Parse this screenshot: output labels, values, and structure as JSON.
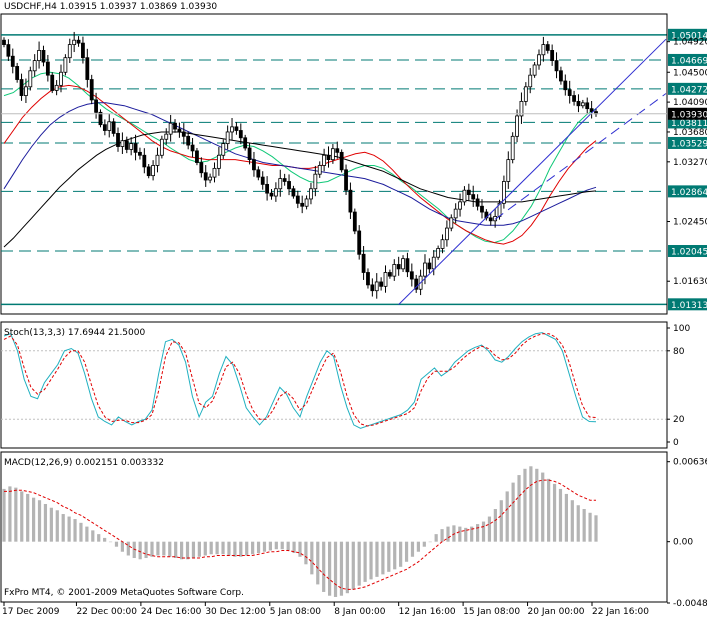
{
  "header": {
    "symbol": "USDCHF,H4",
    "ohlc": "1.03915 1.03937 1.03869 1.03930"
  },
  "footer": {
    "copyright": "FxPro MT4, © 2001-2009 MetaQuotes Software Corp."
  },
  "colors": {
    "background": "#ffffff",
    "axis": "#000000",
    "level_line": "#007a73",
    "level_label_bg": "#007a73",
    "ma_fast": "#10c878",
    "ma_mid": "#e00000",
    "ma_slow": "#1c1c9c",
    "ma_long": "#000000",
    "trendline": "#3030d0",
    "stoch_main": "#20b0c0",
    "stoch_signal": "#e00000",
    "macd_hist": "#b4b4b4",
    "macd_signal": "#e00000",
    "current_price_label_bg": "#000000"
  },
  "chart_data": [
    {
      "type": "candlestick",
      "title": "USDCHF,H4",
      "ylim": [
        1.0118,
        1.053
      ],
      "y_ticks": [
        "1.04920",
        "1.04500",
        "1.04090",
        "1.03680",
        "1.03270",
        "1.02450",
        "1.01630"
      ],
      "x_ticks": [
        "17 Dec 2009",
        "22 Dec 00:00",
        "24 Dec 16:00",
        "30 Dec 12:00",
        "5 Jan 08:00",
        "8 Jan 00:00",
        "12 Jan 16:00",
        "15 Jan 08:00",
        "20 Jan 00:00",
        "22 Jan 16:00"
      ],
      "current_price": "1.03930",
      "levels": [
        {
          "label": "1.05014",
          "value": 1.05014,
          "style": "solid"
        },
        {
          "label": "1.04669",
          "value": 1.04669,
          "style": "dashed"
        },
        {
          "label": "1.04272",
          "value": 1.04272,
          "style": "dashed"
        },
        {
          "label": "1.03811",
          "value": 1.03811,
          "style": "dashed"
        },
        {
          "label": "1.03529",
          "value": 1.03529,
          "style": "dashed"
        },
        {
          "label": "1.02864",
          "value": 1.02864,
          "style": "dashed"
        },
        {
          "label": "1.02045",
          "value": 1.02045,
          "style": "dashed"
        },
        {
          "label": "1.01313",
          "value": 1.01313,
          "style": "solid"
        }
      ],
      "closes": [
        1.0488,
        1.0472,
        1.0458,
        1.044,
        1.0418,
        1.043,
        1.0452,
        1.0466,
        1.048,
        1.0464,
        1.0446,
        1.0425,
        1.0432,
        1.045,
        1.047,
        1.0488,
        1.0494,
        1.049,
        1.047,
        1.044,
        1.0412,
        1.0395,
        1.0378,
        1.037,
        1.0382,
        1.0366,
        1.0348,
        1.0356,
        1.0344,
        1.0352,
        1.034,
        1.0336,
        1.032,
        1.0308,
        1.0322,
        1.0336,
        1.0358,
        1.0365,
        1.038,
        1.0372,
        1.0368,
        1.0362,
        1.035,
        1.0342,
        1.0326,
        1.0312,
        1.0302,
        1.0306,
        1.0318,
        1.0336,
        1.0352,
        1.0368,
        1.0375,
        1.037,
        1.036,
        1.0346,
        1.033,
        1.0316,
        1.0306,
        1.0296,
        1.0284,
        1.028,
        1.029,
        1.0304,
        1.03,
        1.029,
        1.028,
        1.027,
        1.0266,
        1.0276,
        1.029,
        1.031,
        1.0322,
        1.0336,
        1.033,
        1.0345,
        1.034,
        1.0316,
        1.0288,
        1.0258,
        1.0232,
        1.02,
        1.0175,
        1.0158,
        1.015,
        1.0162,
        1.0156,
        1.0175,
        1.017,
        1.0186,
        1.018,
        1.0194,
        1.0176,
        1.0166,
        1.0152,
        1.017,
        1.0188,
        1.018,
        1.0196,
        1.0208,
        1.022,
        1.0236,
        1.025,
        1.0262,
        1.0272,
        1.0288,
        1.0282,
        1.0276,
        1.0266,
        1.0258,
        1.025,
        1.0246,
        1.0252,
        1.027,
        1.03,
        1.033,
        1.0362,
        1.039,
        1.041,
        1.043,
        1.0446,
        1.046,
        1.0474,
        1.0488,
        1.048,
        1.0466,
        1.0452,
        1.0438,
        1.0426,
        1.0418,
        1.041,
        1.0404,
        1.0408,
        1.04,
        1.0396,
        1.0393
      ],
      "series": [
        {
          "name": "MA fast",
          "color": "#10c878",
          "values": [
            1.0418,
            1.0422,
            1.0432,
            1.0442,
            1.0448,
            1.045,
            1.0448,
            1.0442,
            1.0432,
            1.042,
            1.041,
            1.04,
            1.0392,
            1.0385,
            1.0378,
            1.037,
            1.0362,
            1.0355,
            1.0346,
            1.0338,
            1.033,
            1.0326,
            1.0328,
            1.0334,
            1.034,
            1.0346,
            1.035,
            1.0348,
            1.0342,
            1.0334,
            1.0324,
            1.0314,
            1.0306,
            1.03,
            1.0298,
            1.03,
            1.0306,
            1.0312,
            1.0318,
            1.0322,
            1.0322,
            1.0318,
            1.031,
            1.03,
            1.0292,
            1.0282,
            1.0272,
            1.0262,
            1.025,
            1.024,
            1.0232,
            1.0224,
            1.0218,
            1.0216,
            1.022,
            1.0232,
            1.0248,
            1.0266,
            1.029,
            1.0318,
            1.034,
            1.0362,
            1.038,
            1.0392,
            1.04
          ]
        },
        {
          "name": "MA mid",
          "color": "#e00000",
          "values": [
            1.0352,
            1.037,
            1.0388,
            1.0402,
            1.0414,
            1.0424,
            1.043,
            1.0432,
            1.043,
            1.0424,
            1.0416,
            1.0406,
            1.0396,
            1.0386,
            1.0376,
            1.0366,
            1.0356,
            1.0348,
            1.0342,
            1.0338,
            1.0334,
            1.0332,
            1.033,
            1.033,
            1.033,
            1.033,
            1.0328,
            1.0326,
            1.0324,
            1.0322,
            1.0322,
            1.032,
            1.0318,
            1.0318,
            1.032,
            1.0326,
            1.033,
            1.0334,
            1.0338,
            1.034,
            1.0336,
            1.0328,
            1.0316,
            1.0302,
            1.029,
            1.0278,
            1.0268,
            1.0258,
            1.0248,
            1.024,
            1.0232,
            1.0226,
            1.022,
            1.0216,
            1.0214,
            1.0218,
            1.0226,
            1.024,
            1.0258,
            1.028,
            1.03,
            1.0318,
            1.0332,
            1.0346,
            1.0356
          ]
        },
        {
          "name": "MA slow",
          "color": "#1c1c9c",
          "values": [
            1.029,
            1.031,
            1.033,
            1.0348,
            1.0364,
            1.0378,
            1.0388,
            1.0396,
            1.0402,
            1.0406,
            1.0408,
            1.0408,
            1.0406,
            1.0404,
            1.04,
            1.0396,
            1.0392,
            1.0386,
            1.038,
            1.0374,
            1.0368,
            1.0362,
            1.0356,
            1.035,
            1.0344,
            1.0338,
            1.0334,
            1.033,
            1.0326,
            1.0324,
            1.0322,
            1.032,
            1.0318,
            1.0316,
            1.0314,
            1.0312,
            1.031,
            1.0308,
            1.0306,
            1.0304,
            1.03,
            1.0296,
            1.029,
            1.0284,
            1.0278,
            1.027,
            1.0262,
            1.0256,
            1.025,
            1.0246,
            1.0244,
            1.0242,
            1.024,
            1.024,
            1.024,
            1.0242,
            1.0246,
            1.0252,
            1.0258,
            1.0264,
            1.027,
            1.0276,
            1.0282,
            1.0288,
            1.0292
          ]
        },
        {
          "name": "MA long",
          "color": "#000000",
          "values": [
            1.021,
            1.0222,
            1.0236,
            1.025,
            1.0264,
            1.0278,
            1.0292,
            1.0304,
            1.0316,
            1.0326,
            1.0336,
            1.0344,
            1.035,
            1.0356,
            1.036,
            1.0364,
            1.0366,
            1.0368,
            1.0368,
            1.0368,
            1.0366,
            1.0364,
            1.0362,
            1.036,
            1.0358,
            1.0356,
            1.0354,
            1.0352,
            1.035,
            1.0348,
            1.0346,
            1.0344,
            1.0342,
            1.034,
            1.0338,
            1.0336,
            1.0334,
            1.033,
            1.0326,
            1.0322,
            1.0318,
            1.0314,
            1.0308,
            1.0302,
            1.0296,
            1.029,
            1.0286,
            1.0282,
            1.0278,
            1.0276,
            1.0274,
            1.0272,
            1.0272,
            1.0272,
            1.0272,
            1.0272,
            1.0272,
            1.0274,
            1.0276,
            1.0278,
            1.028,
            1.0282,
            1.0284,
            1.0286,
            1.0287
          ]
        }
      ],
      "trendline": [
        [
          90,
          1.0131
        ],
        [
          135,
          1.04
        ]
      ],
      "trendline_dashed": [
        [
          112,
          1.0248
        ],
        [
          135,
          1.035
        ]
      ]
    },
    {
      "type": "line",
      "title": "Stoch(13,3,3) 17.6944 21.5000",
      "ylim": [
        0,
        100
      ],
      "y_ticks": [
        "100",
        "80",
        "20",
        "0"
      ],
      "levels": [
        80,
        20
      ],
      "series": [
        {
          "name": "Stoch main",
          "color": "#20b0c0",
          "values": [
            93,
            95,
            80,
            55,
            40,
            38,
            52,
            60,
            68,
            80,
            82,
            78,
            60,
            38,
            22,
            18,
            15,
            22,
            18,
            15,
            18,
            20,
            28,
            60,
            88,
            90,
            85,
            70,
            40,
            22,
            35,
            40,
            60,
            75,
            68,
            50,
            30,
            22,
            15,
            22,
            35,
            48,
            42,
            30,
            22,
            40,
            55,
            70,
            80,
            75,
            50,
            30,
            15,
            12,
            14,
            16,
            18,
            20,
            22,
            24,
            28,
            35,
            55,
            60,
            65,
            58,
            62,
            70,
            75,
            80,
            83,
            85,
            80,
            72,
            70,
            75,
            82,
            88,
            92,
            95,
            96,
            93,
            90,
            80,
            60,
            40,
            22,
            18,
            17.7
          ]
        },
        {
          "name": "Stoch signal",
          "color": "#e00000",
          "values": [
            90,
            93,
            85,
            65,
            48,
            42,
            46,
            55,
            64,
            74,
            80,
            80,
            70,
            50,
            32,
            22,
            18,
            19,
            19,
            17,
            17,
            19,
            24,
            45,
            75,
            88,
            87,
            78,
            56,
            34,
            30,
            36,
            50,
            66,
            70,
            60,
            42,
            28,
            20,
            20,
            28,
            40,
            44,
            38,
            28,
            34,
            48,
            62,
            74,
            78,
            62,
            40,
            24,
            16,
            14,
            15,
            17,
            19,
            21,
            23,
            25,
            30,
            45,
            56,
            62,
            62,
            62,
            66,
            72,
            77,
            81,
            84,
            82,
            76,
            72,
            73,
            78,
            85,
            90,
            93,
            95,
            95,
            92,
            85,
            70,
            50,
            32,
            22,
            21.5
          ]
        }
      ]
    },
    {
      "type": "bar",
      "title": "MACD(12,26,9) 0.002151 0.003332",
      "ylim": [
        -0.0048,
        0.0065
      ],
      "y_ticks": [
        "0.006365",
        "0.00",
        "-0.00488"
      ],
      "series": [
        {
          "name": "MACD",
          "color": "#b4b4b4",
          "values": [
            0.0042,
            0.0044,
            0.0043,
            0.004,
            0.0038,
            0.0035,
            0.0033,
            0.003,
            0.0027,
            0.0025,
            0.0022,
            0.002,
            0.0018,
            0.0015,
            0.0012,
            0.0009,
            0.0006,
            0.0003,
            0.0,
            -0.0004,
            -0.0008,
            -0.0011,
            -0.0013,
            -0.0014,
            -0.0013,
            -0.0012,
            -0.0011,
            -0.0011,
            -0.0012,
            -0.0013,
            -0.0014,
            -0.0014,
            -0.0013,
            -0.0012,
            -0.0011,
            -0.001,
            -0.001,
            -0.001,
            -0.0011,
            -0.0012,
            -0.0012,
            -0.0011,
            -0.001,
            -0.0009,
            -0.0008,
            -0.0007,
            -0.0006,
            -0.0006,
            -0.0007,
            -0.0009,
            -0.0012,
            -0.0018,
            -0.0026,
            -0.0034,
            -0.004,
            -0.0043,
            -0.0044,
            -0.0043,
            -0.0041,
            -0.0038,
            -0.0035,
            -0.0032,
            -0.003,
            -0.0028,
            -0.0026,
            -0.0024,
            -0.0022,
            -0.002,
            -0.0016,
            -0.0012,
            -0.0008,
            -0.0004,
            0.0,
            0.0006,
            0.001,
            0.0012,
            0.0013,
            0.0012,
            0.0011,
            0.0012,
            0.0014,
            0.0016,
            0.002,
            0.0026,
            0.0033,
            0.004,
            0.0047,
            0.0053,
            0.0058,
            0.006,
            0.0058,
            0.0055,
            0.005,
            0.0046,
            0.0042,
            0.0038,
            0.0033,
            0.0029,
            0.0026,
            0.0023,
            0.0021
          ]
        },
        {
          "name": "Signal",
          "color": "#e00000",
          "values": [
            0.004,
            0.004,
            0.0041,
            0.0041,
            0.004,
            0.0039,
            0.0037,
            0.0035,
            0.0033,
            0.0031,
            0.0028,
            0.0026,
            0.0023,
            0.0021,
            0.0018,
            0.0015,
            0.0012,
            0.0009,
            0.0006,
            0.0003,
            0.0,
            -0.0003,
            -0.0006,
            -0.0008,
            -0.001,
            -0.0011,
            -0.0012,
            -0.0012,
            -0.0012,
            -0.0012,
            -0.0013,
            -0.0013,
            -0.0013,
            -0.0013,
            -0.0012,
            -0.0012,
            -0.0011,
            -0.0011,
            -0.0011,
            -0.0011,
            -0.0011,
            -0.0011,
            -0.0011,
            -0.001,
            -0.0009,
            -0.0008,
            -0.0008,
            -0.0007,
            -0.0007,
            -0.0008,
            -0.0009,
            -0.0012,
            -0.0016,
            -0.0021,
            -0.0026,
            -0.003,
            -0.0034,
            -0.0037,
            -0.0038,
            -0.0038,
            -0.0037,
            -0.0036,
            -0.0034,
            -0.0032,
            -0.003,
            -0.0028,
            -0.0026,
            -0.0024,
            -0.0022,
            -0.0019,
            -0.0016,
            -0.0012,
            -0.0008,
            -0.0004,
            0.0,
            0.0003,
            0.0006,
            0.0008,
            0.0009,
            0.001,
            0.0011,
            0.0012,
            0.0014,
            0.0017,
            0.0021,
            0.0026,
            0.0031,
            0.0036,
            0.0041,
            0.0045,
            0.0048,
            0.0049,
            0.0049,
            0.0048,
            0.0046,
            0.0043,
            0.004,
            0.0037,
            0.0035,
            0.0033,
            0.0033
          ]
        }
      ]
    }
  ]
}
